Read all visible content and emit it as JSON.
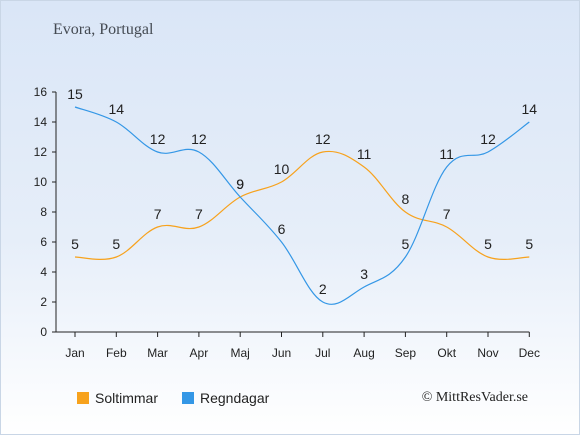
{
  "title": "Evora, Portugal",
  "credit": "© MittResVader.se",
  "chart_data": {
    "type": "line",
    "categories": [
      "Jan",
      "Feb",
      "Mar",
      "Apr",
      "Maj",
      "Jun",
      "Jul",
      "Aug",
      "Sep",
      "Okt",
      "Nov",
      "Dec"
    ],
    "ylim": [
      0,
      16
    ],
    "yticks": [
      0,
      2,
      4,
      6,
      8,
      10,
      12,
      14,
      16
    ],
    "grid": false,
    "legend_position": "bottom-left",
    "series": [
      {
        "name": "Soltimmar",
        "color": "#f7a21d",
        "values": [
          5,
          5,
          7,
          7,
          9,
          10,
          12,
          11,
          8,
          7,
          5,
          5
        ]
      },
      {
        "name": "Regndagar",
        "color": "#3497e6",
        "values": [
          15,
          14,
          12,
          12,
          9,
          6,
          2,
          3,
          5,
          11,
          12,
          14
        ]
      }
    ]
  }
}
